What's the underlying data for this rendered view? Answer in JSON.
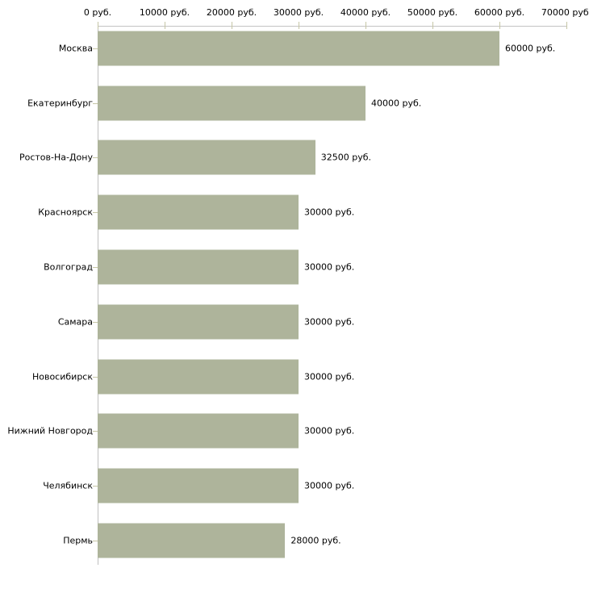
{
  "chart_data": {
    "type": "bar",
    "orientation": "horizontal",
    "title": "",
    "xlabel": "",
    "ylabel": "",
    "grid": false,
    "legend": false,
    "categories": [
      "Москва",
      "Екатеринбург",
      "Ростов-На-Дону",
      "Красноярск",
      "Волгоград",
      "Самара",
      "Новосибирск",
      "Нижний Новгород",
      "Челябинск",
      "Пермь"
    ],
    "values": [
      60000,
      40000,
      32500,
      30000,
      30000,
      30000,
      30000,
      30000,
      30000,
      28000
    ],
    "value_labels": [
      "60000 руб.",
      "40000 руб.",
      "32500 руб.",
      "30000 руб.",
      "30000 руб.",
      "30000 руб.",
      "30000 руб.",
      "30000 руб.",
      "30000 руб.",
      "28000 руб."
    ],
    "x_axis": {
      "position": "top",
      "min": 0,
      "max": 70000,
      "ticks": [
        0,
        10000,
        20000,
        30000,
        40000,
        50000,
        60000,
        70000
      ],
      "tick_labels": [
        "0 руб.",
        "10000 руб.",
        "20000 руб.",
        "30000 руб.",
        "40000 руб.",
        "50000 руб.",
        "60000 руб.",
        "70000 руб."
      ]
    }
  },
  "colors": {
    "bar": "#aeb49b",
    "x_axis_line": "#c3c3c3",
    "y_axis_line": "#c0c0c0",
    "tick": "#c6c6a6",
    "text": "#000000",
    "background": "#ffffff"
  }
}
